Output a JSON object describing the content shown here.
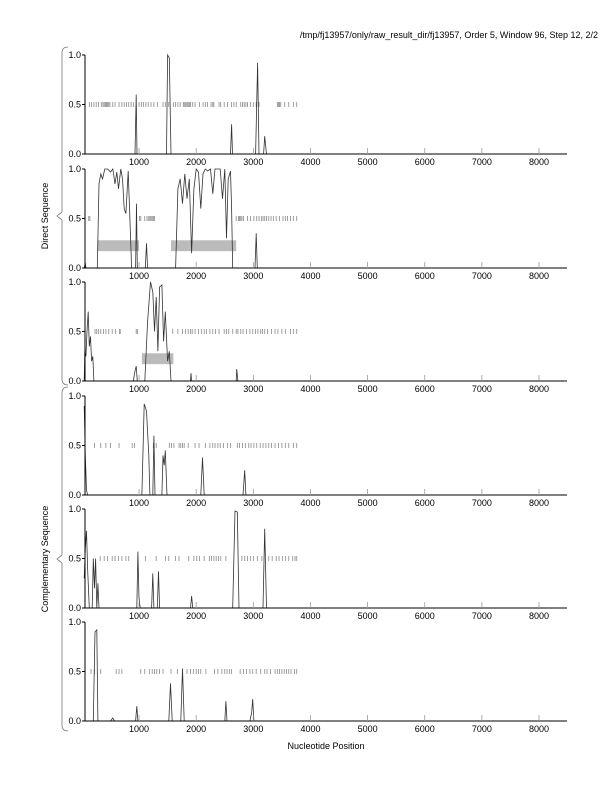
{
  "title": "/tmp/fj13957/only/raw_result_dir/fj13957, Order 5, Window 96, Step 12, 2/2",
  "chart_data": {
    "type": "line",
    "xlabel": "Nucleotide Position",
    "xlim": [
      0,
      8500
    ],
    "ylim": [
      0,
      1
    ],
    "x_ticks": [
      "1000",
      "2000",
      "3000",
      "4000",
      "5000",
      "6000",
      "7000",
      "8000"
    ],
    "y_ticks": [
      "0.0",
      "0.5",
      "1.0"
    ],
    "groups": [
      {
        "label": "Direct Sequence",
        "panels": [
          0,
          1,
          2
        ]
      },
      {
        "label": "Complementary Sequence",
        "panels": [
          3,
          4,
          5
        ]
      }
    ],
    "colors": {
      "line": "#333333",
      "stop": "#888888",
      "gene_box": "#bbbbbb",
      "axis": "#000000"
    },
    "panels": [
      {
        "name": "direct-frame-1",
        "points": [
          [
            40,
            0
          ],
          [
            930,
            0
          ],
          [
            950,
            0.6
          ],
          [
            965,
            0
          ],
          [
            1480,
            0
          ],
          [
            1500,
            1.0
          ],
          [
            1530,
            0.97
          ],
          [
            1560,
            0
          ],
          [
            2600,
            0
          ],
          [
            2620,
            0.3
          ],
          [
            2635,
            0
          ],
          [
            3040,
            0
          ],
          [
            3075,
            0.92
          ],
          [
            3100,
            0
          ],
          [
            3180,
            0
          ],
          [
            3200,
            0.18
          ],
          [
            3230,
            0
          ],
          [
            8450,
            0
          ]
        ],
        "stops": [
          130,
          170,
          210,
          250,
          290,
          340,
          370,
          390,
          410,
          430,
          450,
          470,
          490,
          540,
          580,
          650,
          700,
          740,
          780,
          820,
          860,
          900,
          1000,
          1040,
          1080,
          1120,
          1160,
          1210,
          1260,
          1320,
          1420,
          1460,
          1520,
          1600,
          1640,
          1680,
          1720,
          1780,
          1800,
          1820,
          1840,
          1860,
          1880,
          1900,
          1940,
          1980,
          2060,
          2120,
          2160,
          2200,
          2260,
          2290,
          2310,
          2400,
          2430,
          2490,
          2550,
          2620,
          2660,
          2700,
          2780,
          2810,
          2840,
          2870,
          2900,
          2950,
          3000,
          3050,
          3100,
          3420,
          3440,
          3460,
          3480,
          3550,
          3620,
          3700,
          3760
        ],
        "genes": []
      },
      {
        "name": "direct-frame-2",
        "points": [
          [
            40,
            0
          ],
          [
            60,
            0.05
          ],
          [
            70,
            0
          ],
          [
            270,
            0
          ],
          [
            300,
            0.85
          ],
          [
            330,
            0.95
          ],
          [
            360,
            0.9
          ],
          [
            400,
            1.0
          ],
          [
            450,
            1.0
          ],
          [
            500,
            0.97
          ],
          [
            540,
            1.0
          ],
          [
            580,
            0.85
          ],
          [
            610,
            0.97
          ],
          [
            640,
            0.8
          ],
          [
            680,
            1.0
          ],
          [
            710,
            0.9
          ],
          [
            740,
            0.6
          ],
          [
            770,
            0.55
          ],
          [
            810,
            0.98
          ],
          [
            840,
            0.5
          ],
          [
            870,
            0
          ],
          [
            940,
            0
          ],
          [
            955,
            0.65
          ],
          [
            970,
            0
          ],
          [
            1110,
            0
          ],
          [
            1130,
            0.25
          ],
          [
            1150,
            0
          ],
          [
            1640,
            0
          ],
          [
            1680,
            0.8
          ],
          [
            1720,
            0.9
          ],
          [
            1760,
            0.65
          ],
          [
            1800,
            0.95
          ],
          [
            1840,
            0.7
          ],
          [
            1880,
            0.9
          ],
          [
            1920,
            0.15
          ],
          [
            1960,
            0.8
          ],
          [
            2000,
            1.0
          ],
          [
            2040,
            0.97
          ],
          [
            2080,
            0.6
          ],
          [
            2120,
            0.95
          ],
          [
            2160,
            1.0
          ],
          [
            2200,
            0.98
          ],
          [
            2250,
            1.0
          ],
          [
            2290,
            0.75
          ],
          [
            2330,
            1.0
          ],
          [
            2380,
            1.0
          ],
          [
            2420,
            1.0
          ],
          [
            2460,
            0.7
          ],
          [
            2500,
            1.0
          ],
          [
            2530,
            0.3
          ],
          [
            2560,
            0.9
          ],
          [
            2600,
            0.98
          ],
          [
            2620,
            0.6
          ],
          [
            2640,
            0
          ],
          [
            3030,
            0
          ],
          [
            3050,
            0.35
          ],
          [
            3070,
            0
          ],
          [
            8450,
            0
          ]
        ],
        "stops": [
          120,
          140,
          1010,
          1030,
          1100,
          1140,
          1170,
          1190,
          1210,
          1230,
          1250,
          1270,
          2700,
          2740,
          2760,
          2780,
          2800,
          2830,
          2900,
          2950,
          3010,
          3060,
          3100,
          3140,
          3170,
          3200,
          3230,
          3270,
          3310,
          3350,
          3400,
          3460,
          3520,
          3560,
          3600,
          3650,
          3700,
          3760
        ],
        "genes": [
          [
            270,
            1000
          ],
          [
            1560,
            2700
          ]
        ]
      },
      {
        "name": "direct-frame-3",
        "points": [
          [
            40,
            0
          ],
          [
            50,
            0.3
          ],
          [
            70,
            0.25
          ],
          [
            90,
            0.5
          ],
          [
            110,
            0.7
          ],
          [
            130,
            0.35
          ],
          [
            150,
            0.45
          ],
          [
            170,
            0.2
          ],
          [
            190,
            0.25
          ],
          [
            210,
            0
          ],
          [
            900,
            0
          ],
          [
            930,
            0.1
          ],
          [
            950,
            0.15
          ],
          [
            970,
            0
          ],
          [
            1100,
            0
          ],
          [
            1150,
            0.6
          ],
          [
            1200,
            1.0
          ],
          [
            1240,
            0.9
          ],
          [
            1270,
            0.5
          ],
          [
            1300,
            0.85
          ],
          [
            1330,
            0.3
          ],
          [
            1360,
            0.95
          ],
          [
            1400,
            0.97
          ],
          [
            1430,
            0.4
          ],
          [
            1460,
            0.7
          ],
          [
            1500,
            0.2
          ],
          [
            1530,
            0.3
          ],
          [
            1560,
            0
          ],
          [
            1900,
            0
          ],
          [
            1910,
            0.08
          ],
          [
            1920,
            0
          ],
          [
            2700,
            0
          ],
          [
            2710,
            0.12
          ],
          [
            2730,
            0
          ],
          [
            8450,
            0
          ]
        ],
        "stops": [
          230,
          260,
          290,
          330,
          380,
          420,
          470,
          530,
          590,
          660,
          670,
          950,
          970,
          1590,
          1680,
          1760,
          1810,
          1860,
          1900,
          1930,
          1980,
          2040,
          2090,
          2140,
          2180,
          2240,
          2290,
          2340,
          2400,
          2490,
          2530,
          2570,
          2640,
          2700,
          2730,
          2780,
          2820,
          2880,
          2940,
          2990,
          3040,
          3080,
          3130,
          3160,
          3200,
          3250,
          3320,
          3380,
          3430,
          3500,
          3560,
          3650,
          3700,
          3760
        ],
        "genes": [
          [
            1050,
            1600
          ]
        ]
      },
      {
        "name": "complementary-frame-1",
        "points": [
          [
            40,
            0.9
          ],
          [
            60,
            0.4
          ],
          [
            80,
            0.05
          ],
          [
            100,
            0
          ],
          [
            1050,
            0
          ],
          [
            1090,
            0.92
          ],
          [
            1130,
            0.85
          ],
          [
            1170,
            0.4
          ],
          [
            1190,
            0
          ],
          [
            1240,
            0
          ],
          [
            1260,
            0.6
          ],
          [
            1280,
            0
          ],
          [
            1400,
            0
          ],
          [
            1420,
            0.4
          ],
          [
            1440,
            0.3
          ],
          [
            1460,
            0.45
          ],
          [
            1490,
            0
          ],
          [
            2080,
            0
          ],
          [
            2110,
            0.38
          ],
          [
            2140,
            0
          ],
          [
            2820,
            0
          ],
          [
            2850,
            0.25
          ],
          [
            2870,
            0
          ],
          [
            8450,
            0
          ]
        ],
        "stops": [
          220,
          330,
          420,
          500,
          650,
          880,
          920,
          1250,
          1300,
          1530,
          1570,
          1610,
          1700,
          1730,
          1760,
          1790,
          1860,
          1980,
          2050,
          2160,
          2240,
          2290,
          2330,
          2380,
          2420,
          2480,
          2550,
          2600,
          2720,
          2760,
          2810,
          2860,
          2920,
          2960,
          3010,
          3060,
          3120,
          3170,
          3220,
          3270,
          3320,
          3380,
          3440,
          3500,
          3560,
          3620,
          3700,
          3760
        ],
        "genes": []
      },
      {
        "name": "complementary-frame-2",
        "points": [
          [
            40,
            0.3
          ],
          [
            60,
            0.6
          ],
          [
            80,
            0.78
          ],
          [
            100,
            0.4
          ],
          [
            130,
            0
          ],
          [
            180,
            0
          ],
          [
            200,
            0.5
          ],
          [
            220,
            0.2
          ],
          [
            240,
            0.5
          ],
          [
            260,
            0
          ],
          [
            280,
            0.25
          ],
          [
            300,
            0
          ],
          [
            960,
            0
          ],
          [
            980,
            0.57
          ],
          [
            1000,
            0.1
          ],
          [
            1020,
            0
          ],
          [
            1220,
            0
          ],
          [
            1240,
            0.35
          ],
          [
            1260,
            0
          ],
          [
            1320,
            0
          ],
          [
            1340,
            0.37
          ],
          [
            1360,
            0
          ],
          [
            1900,
            0
          ],
          [
            1920,
            0.12
          ],
          [
            1940,
            0
          ],
          [
            2640,
            0
          ],
          [
            2680,
            0.98
          ],
          [
            2720,
            0.97
          ],
          [
            2750,
            0
          ],
          [
            3170,
            0
          ],
          [
            3200,
            0.8
          ],
          [
            3230,
            0
          ],
          [
            8450,
            0
          ]
        ],
        "stops": [
          320,
          390,
          450,
          530,
          580,
          640,
          700,
          770,
          820,
          1110,
          1300,
          1460,
          1520,
          1640,
          1700,
          1870,
          1960,
          2010,
          2060,
          2140,
          2230,
          2270,
          2310,
          2350,
          2390,
          2430,
          2520,
          2800,
          2850,
          2900,
          2950,
          3000,
          3070,
          3150,
          3270,
          3330,
          3400,
          3450,
          3510,
          3560,
          3620,
          3690,
          3730,
          3760
        ],
        "genes": []
      },
      {
        "name": "complementary-frame-3",
        "points": [
          [
            40,
            0
          ],
          [
            200,
            0
          ],
          [
            230,
            0.9
          ],
          [
            260,
            0.92
          ],
          [
            280,
            0
          ],
          [
            500,
            0
          ],
          [
            540,
            0.03
          ],
          [
            570,
            0
          ],
          [
            940,
            0
          ],
          [
            960,
            0.15
          ],
          [
            980,
            0
          ],
          [
            1520,
            0
          ],
          [
            1550,
            0.38
          ],
          [
            1580,
            0
          ],
          [
            1730,
            0
          ],
          [
            1760,
            0.53
          ],
          [
            1790,
            0
          ],
          [
            2500,
            0
          ],
          [
            2520,
            0.2
          ],
          [
            2540,
            0
          ],
          [
            2940,
            0
          ],
          [
            2970,
            0.08
          ],
          [
            2990,
            0.22
          ],
          [
            3010,
            0
          ],
          [
            8450,
            0
          ]
        ],
        "stops": [
          160,
          220,
          330,
          600,
          650,
          700,
          1030,
          1100,
          1180,
          1230,
          1270,
          1310,
          1360,
          1420,
          1560,
          1670,
          1840,
          1900,
          1950,
          2000,
          2040,
          2080,
          2170,
          2320,
          2380,
          2450,
          2500,
          2540,
          2580,
          2620,
          2770,
          2830,
          2880,
          2940,
          2990,
          3050,
          3130,
          3200,
          3240,
          3300,
          3380,
          3420,
          3460,
          3500,
          3540,
          3580,
          3620,
          3660,
          3720,
          3760
        ],
        "genes": []
      }
    ]
  }
}
